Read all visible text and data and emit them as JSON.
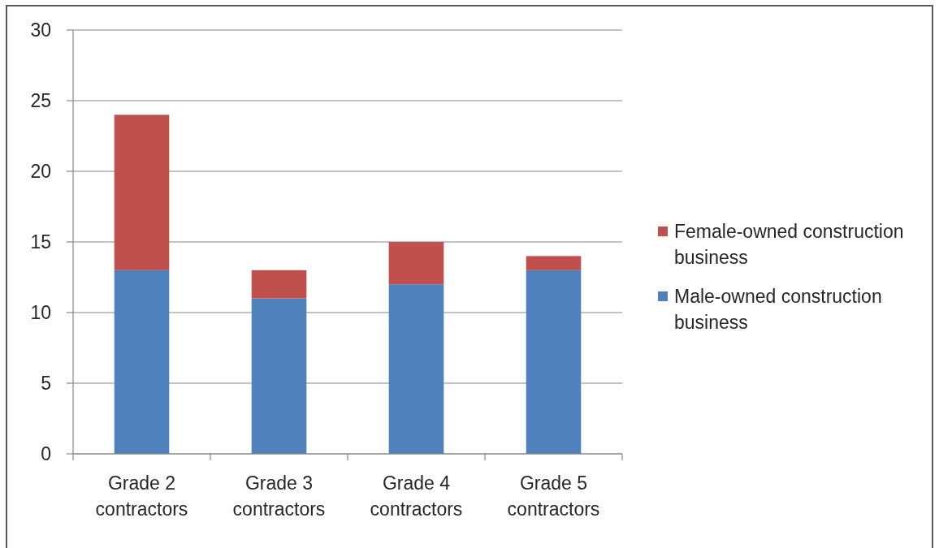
{
  "chart_data": {
    "type": "bar",
    "stacked": true,
    "categories": [
      "Grade 2 contractors",
      "Grade 3 contractors",
      "Grade 4 contractors",
      "Grade 5 contractors"
    ],
    "series": [
      {
        "name": "Male-owned construction business",
        "color": "#4f81bd",
        "values": [
          13,
          11,
          12,
          13
        ]
      },
      {
        "name": "Female-owned construction business",
        "color": "#c0504d",
        "values": [
          11,
          2,
          3,
          1
        ]
      }
    ],
    "ylim": [
      0,
      30
    ],
    "yticks": [
      0,
      5,
      10,
      15,
      20,
      25,
      30
    ],
    "grid": "y",
    "legend": "right"
  }
}
